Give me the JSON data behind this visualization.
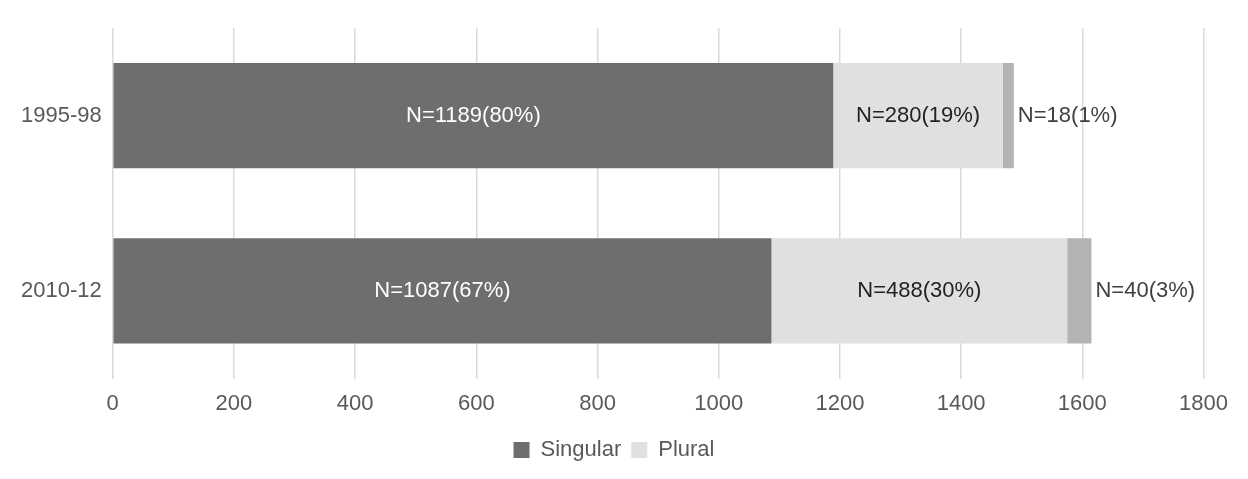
{
  "chart_data": {
    "type": "bar",
    "orientation": "horizontal",
    "stacked": true,
    "categories": [
      "1995-98",
      "2010-12"
    ],
    "series": [
      {
        "name": "Singular",
        "color": "#6e6e6e",
        "values": [
          1189,
          1087
        ],
        "value_labels": [
          "N=1189(80%)",
          "N=1087(67%)"
        ]
      },
      {
        "name": "Plural",
        "color": "#e0e0e0",
        "values": [
          280,
          488
        ],
        "value_labels": [
          "N=280(19%)",
          "N=488(30%)"
        ]
      },
      {
        "color": "#b3b3b3",
        "values": [
          18,
          40
        ],
        "value_labels": [
          "N=18(1%)",
          "N=40(3%)"
        ]
      }
    ],
    "xlim": [
      0,
      1800
    ],
    "xticks": [
      0,
      200,
      400,
      600,
      800,
      1000,
      1200,
      1400,
      1600,
      1800
    ],
    "grid": "x",
    "legend": "bottom"
  }
}
